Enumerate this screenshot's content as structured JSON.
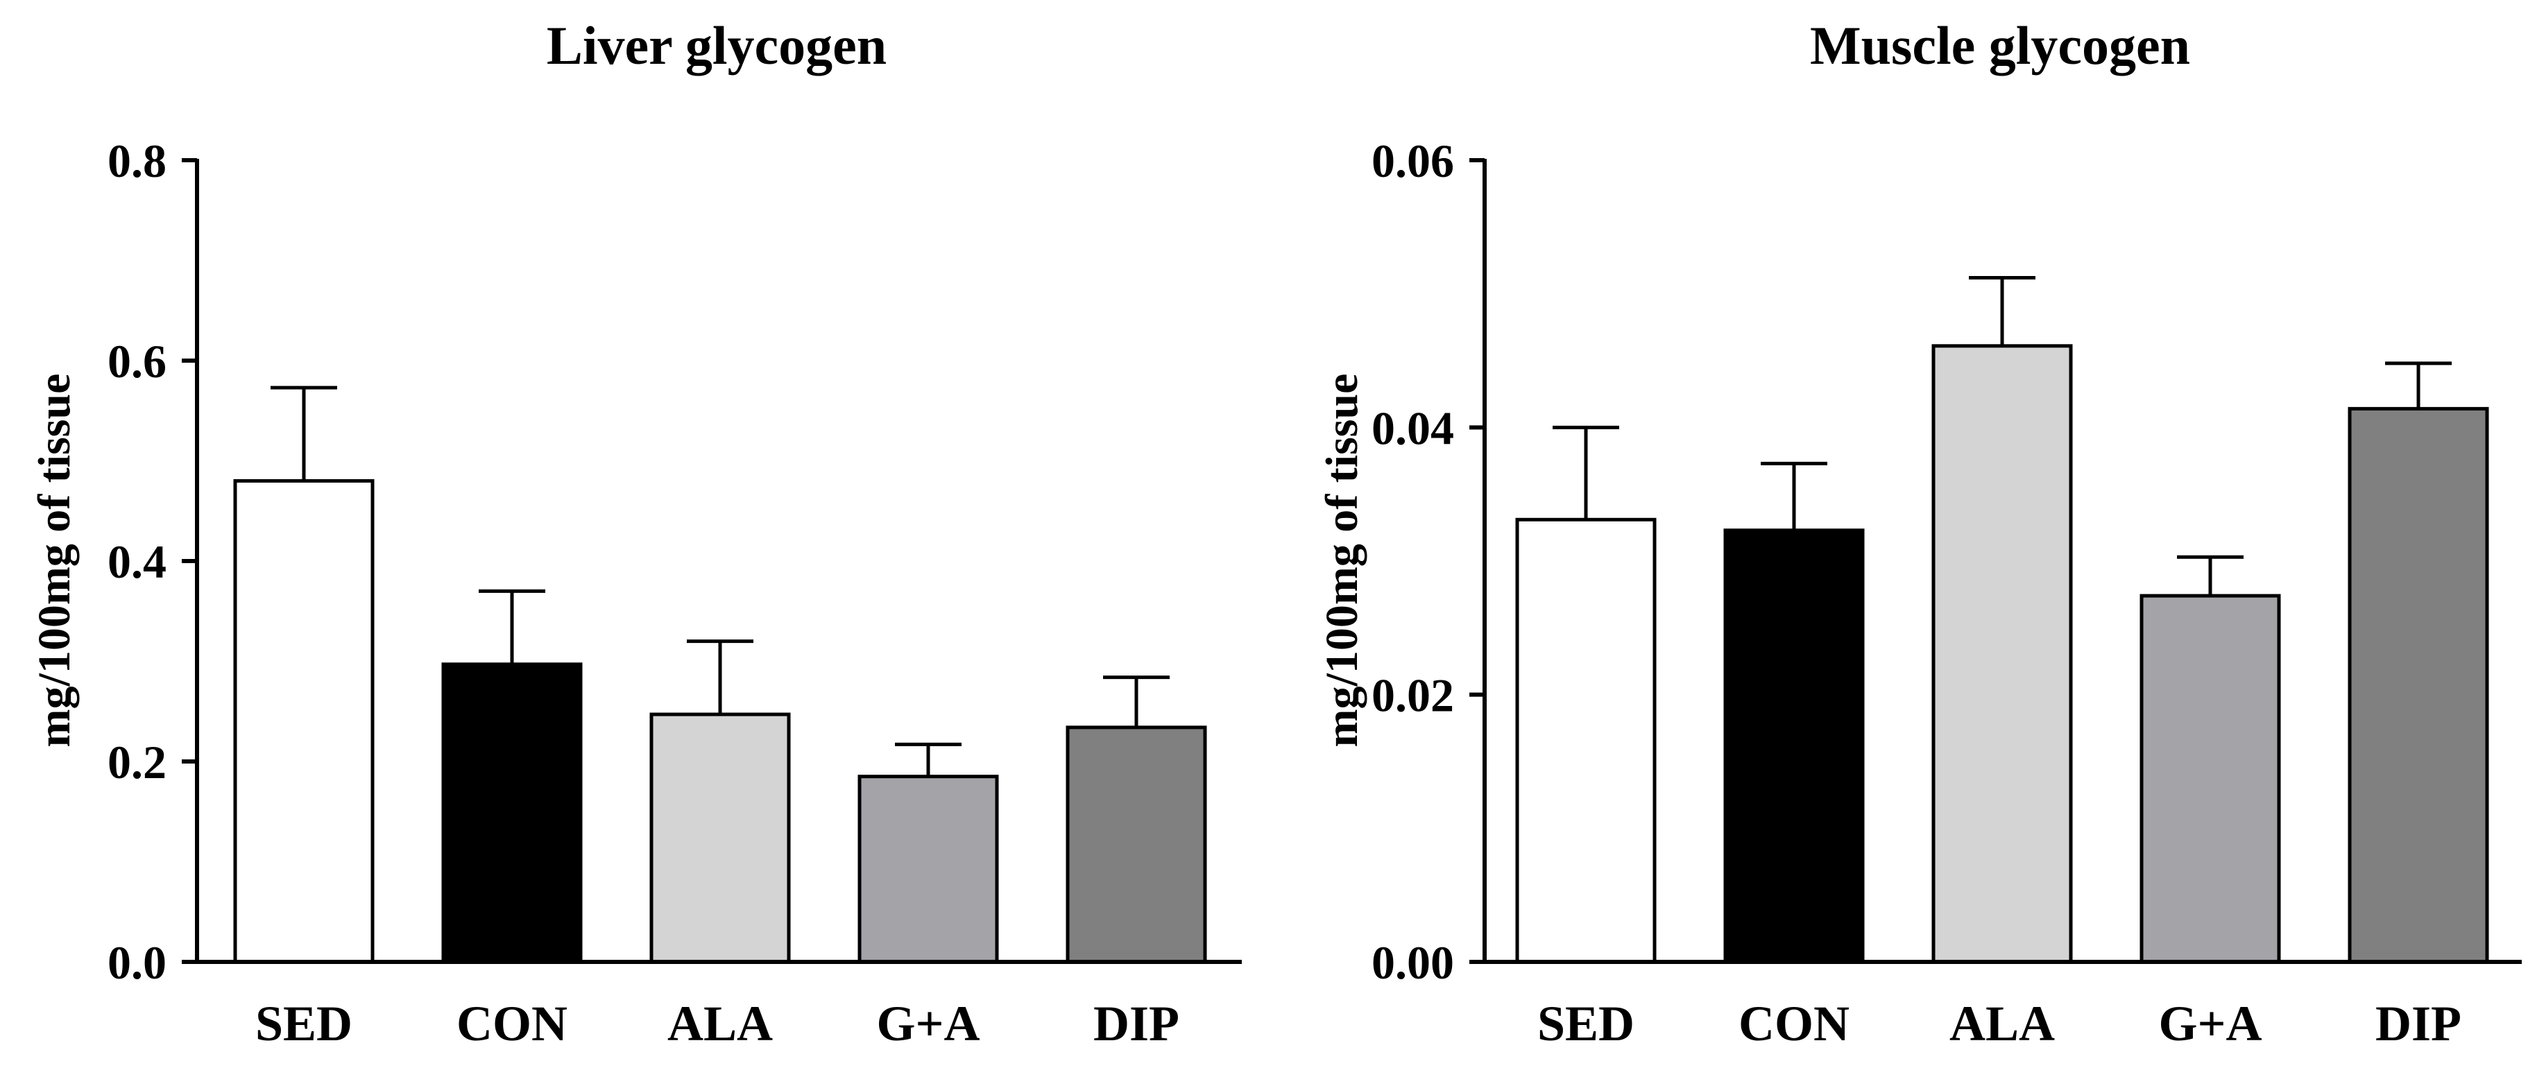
{
  "chart_data": [
    {
      "type": "bar",
      "title": "Liver glycogen",
      "xlabel": "",
      "ylabel": "mg/100mg of tissue",
      "categories": [
        "SED",
        "CON",
        "ALA",
        "G+A",
        "DIP"
      ],
      "values": [
        0.48,
        0.297,
        0.247,
        0.185,
        0.234
      ],
      "errors": [
        0.093,
        0.073,
        0.073,
        0.032,
        0.05
      ],
      "bar_colors": [
        "#ffffff",
        "#000000",
        "#d4d4d4",
        "#a4a3a8",
        "#808080"
      ],
      "ylim": [
        0,
        0.8
      ],
      "yticks": [
        0.0,
        0.2,
        0.4,
        0.6,
        0.8
      ],
      "ytick_labels": [
        "0.0",
        "0.2",
        "0.4",
        "0.6",
        "0.8"
      ],
      "grid": false
    },
    {
      "type": "bar",
      "title": "Muscle glycogen",
      "xlabel": "",
      "ylabel": "mg/100mg of tissue",
      "categories": [
        "SED",
        "CON",
        "ALA",
        "G+A",
        "DIP"
      ],
      "values": [
        0.0331,
        0.0323,
        0.0461,
        0.0274,
        0.0414
      ],
      "errors": [
        0.0069,
        0.005,
        0.0051,
        0.0029,
        0.0034
      ],
      "bar_colors": [
        "#ffffff",
        "#000000",
        "#d4d4d4",
        "#a4a3a8",
        "#808080"
      ],
      "ylim": [
        0,
        0.06
      ],
      "yticks": [
        0.0,
        0.02,
        0.04,
        0.06
      ],
      "ytick_labels": [
        "0.00",
        "0.02",
        "0.04",
        "0.06"
      ],
      "grid": false
    }
  ]
}
